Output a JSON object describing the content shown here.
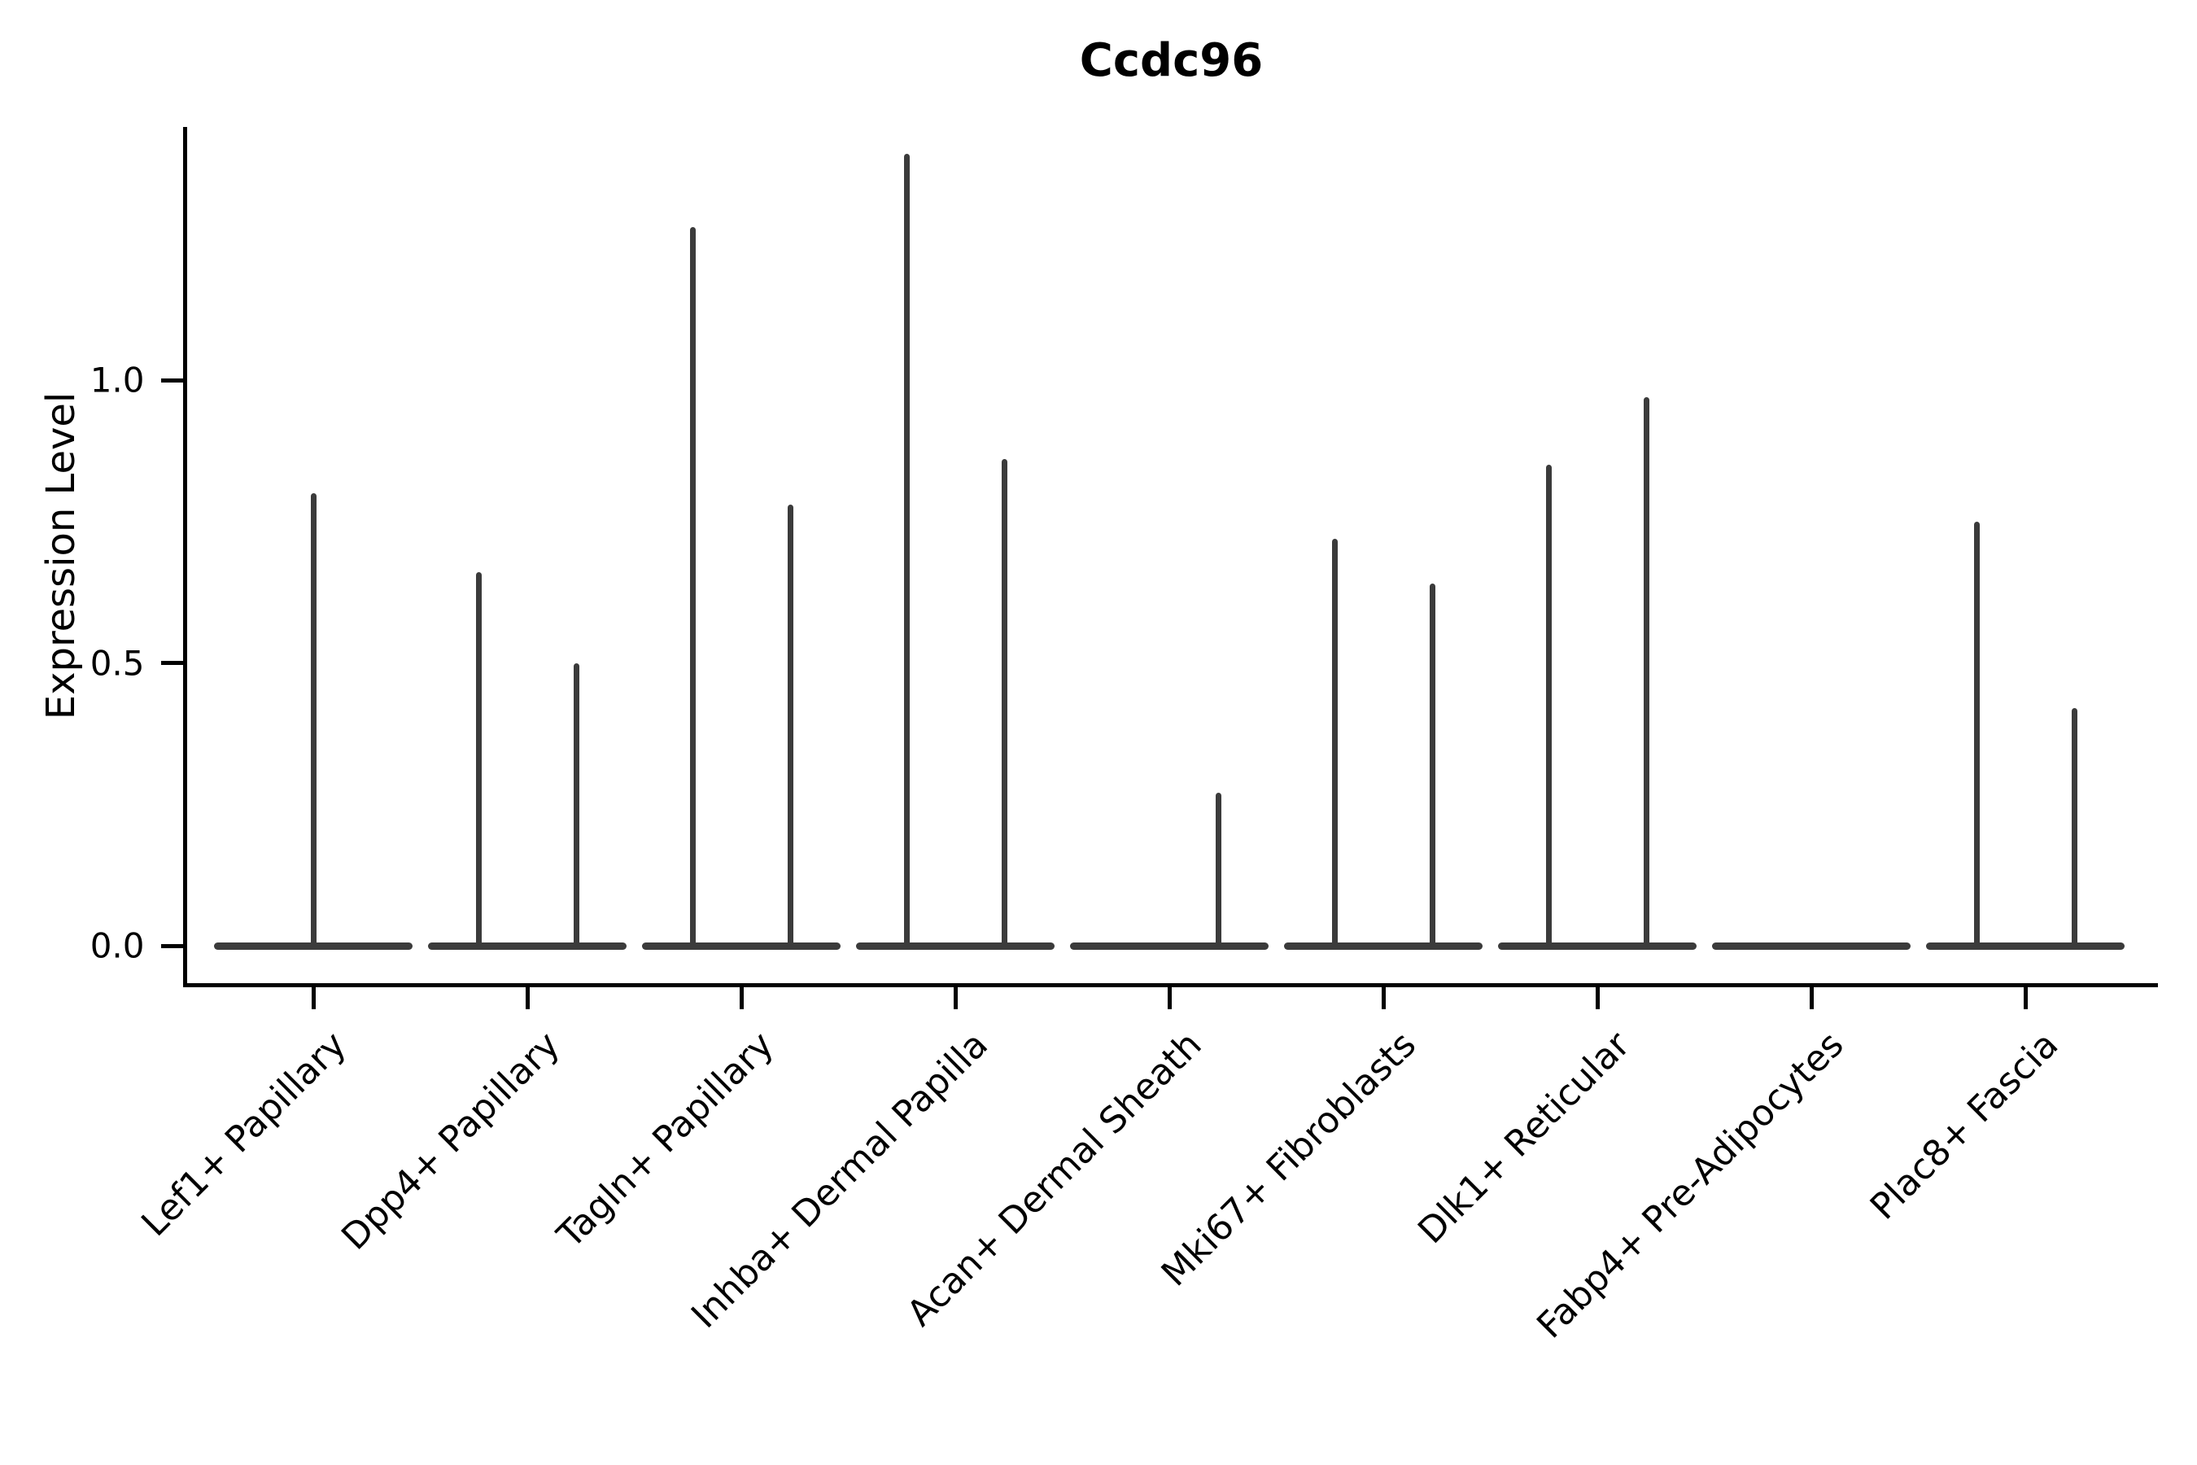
{
  "chart_data": {
    "type": "violin",
    "title": "Ccdc96",
    "xlabel": "",
    "ylabel": "Expression Level",
    "yticks": [
      "0.0",
      "0.5",
      "1.0"
    ],
    "ytick_values": [
      0.0,
      0.5,
      1.0
    ],
    "ylim": [
      -0.07,
      1.44
    ],
    "grid": false,
    "legend": "none",
    "violin_color": "#3b3b3b",
    "axis_color": "#000000",
    "description": "Each cell-type group shows a flat violin mass at expression 0 with thin spikes reaching the maximum expression of its sub-violins.",
    "categories": [
      {
        "label": "Lef1+ Papillary",
        "spikes": [
          {
            "side": "center",
            "max": 0.8
          }
        ]
      },
      {
        "label": "Dpp4+ Papillary",
        "spikes": [
          {
            "side": "left",
            "max": 0.66
          },
          {
            "side": "right",
            "max": 0.5
          }
        ]
      },
      {
        "label": "Tagln+ Papillary",
        "spikes": [
          {
            "side": "left",
            "max": 1.27
          },
          {
            "side": "right",
            "max": 0.78
          }
        ]
      },
      {
        "label": "Inhba+ Dermal Papilla",
        "spikes": [
          {
            "side": "left",
            "max": 1.4
          },
          {
            "side": "right",
            "max": 0.86
          }
        ]
      },
      {
        "label": "Acan+ Dermal Sheath",
        "spikes": [
          {
            "side": "right",
            "max": 0.27
          }
        ]
      },
      {
        "label": "Mki67+ Fibroblasts",
        "spikes": [
          {
            "side": "left",
            "max": 0.72
          },
          {
            "side": "right",
            "max": 0.64
          }
        ]
      },
      {
        "label": "Dlk1+ Reticular",
        "spikes": [
          {
            "side": "left",
            "max": 0.85
          },
          {
            "side": "right",
            "max": 0.97
          }
        ]
      },
      {
        "label": "Fabp4+ Pre-Adipocytes",
        "spikes": []
      },
      {
        "label": "Plac8+ Fascia",
        "spikes": [
          {
            "side": "left",
            "max": 0.75
          },
          {
            "side": "right",
            "max": 0.42
          }
        ]
      }
    ]
  }
}
